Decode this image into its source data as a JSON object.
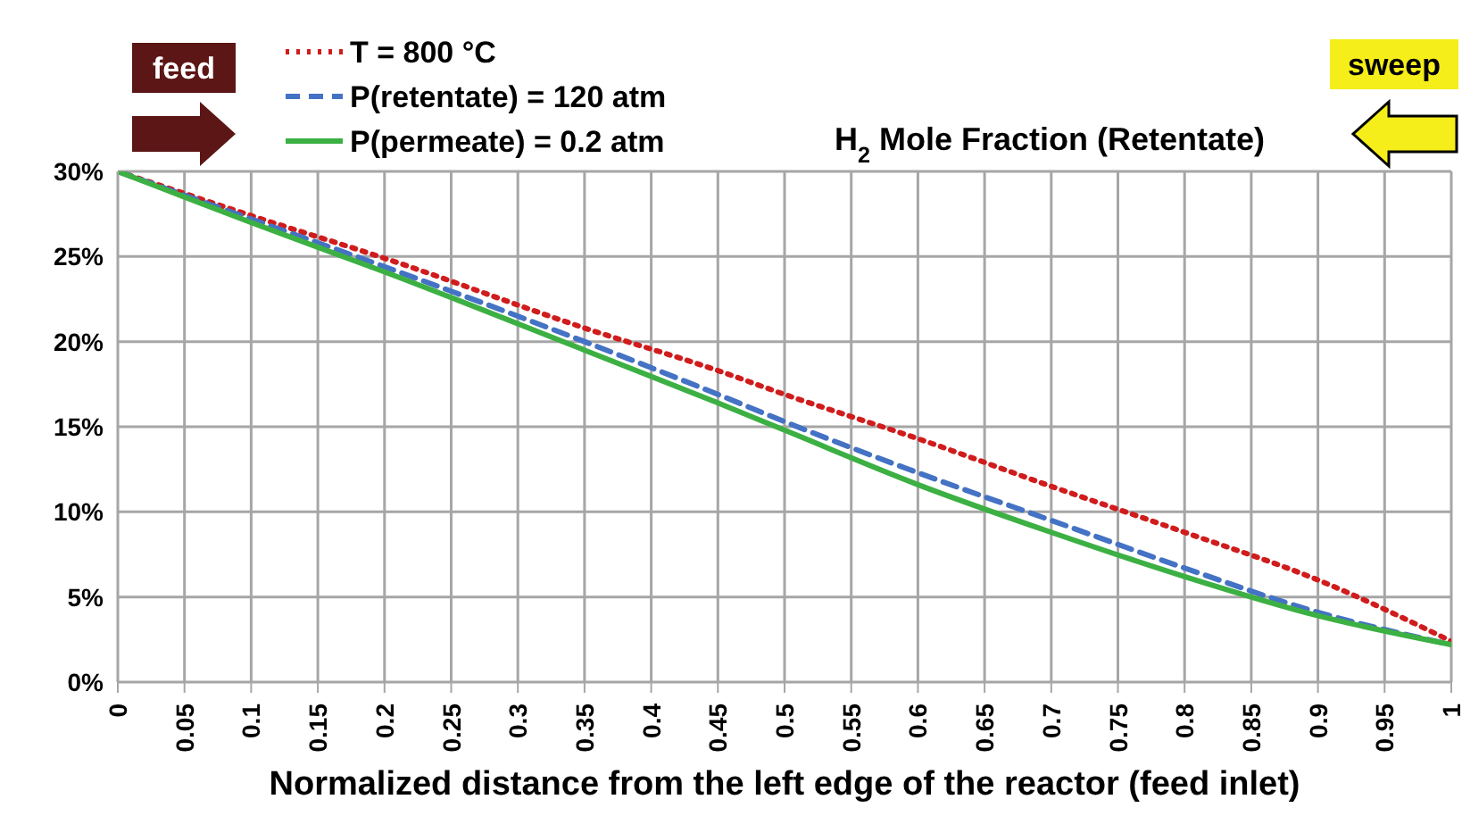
{
  "chart_data": {
    "type": "line",
    "title": "H$_{2}$ Mole Fraction (Retentate)",
    "xlabel": "Normalized distance from the left edge of the reactor (feed inlet)",
    "annotations": [
      "feed",
      "sweep"
    ],
    "x": [
      0,
      0.05,
      0.1,
      0.2,
      0.35,
      0.45,
      0.5,
      0.6,
      0.7,
      0.8,
      0.9,
      1
    ],
    "series": [
      {
        "name": "T = 800 °C",
        "color": "#d01c1c",
        "line_style": "dotted",
        "values": [
          30,
          28.7,
          27.4,
          24.9,
          20.8,
          18.3,
          16.9,
          14.3,
          11.5,
          8.8,
          6.0,
          2.4
        ]
      },
      {
        "name": "P(retentate) = 120 atm",
        "color": "#4472c4",
        "line_style": "dashed",
        "values": [
          30,
          28.6,
          27.2,
          24.4,
          20.0,
          16.9,
          15.3,
          12.3,
          9.5,
          6.7,
          4.1,
          2.2
        ]
      },
      {
        "name": "P(permeate) = 0.2 atm",
        "color": "#3cb043",
        "line_style": "solid",
        "values": [
          30,
          28.5,
          27.0,
          24.1,
          19.5,
          16.4,
          14.8,
          11.6,
          8.8,
          6.2,
          3.9,
          2.2
        ]
      }
    ],
    "xlim": [
      0,
      1
    ],
    "xticks": [
      0,
      0.05,
      0.1,
      0.15,
      0.2,
      0.25,
      0.3,
      0.35,
      0.4,
      0.45,
      0.5,
      0.55,
      0.6,
      0.65,
      0.7,
      0.75,
      0.8,
      0.85,
      0.9,
      0.95,
      1
    ],
    "ylim": [
      0,
      30
    ],
    "yticks": [
      {
        "value": 0,
        "label": "0%"
      },
      {
        "value": 5,
        "label": "5%"
      },
      {
        "value": 10,
        "label": "10%"
      },
      {
        "value": 15,
        "label": "15%"
      },
      {
        "value": 20,
        "label": "20%"
      },
      {
        "value": 25,
        "label": "25%"
      },
      {
        "value": 30,
        "label": "30%"
      }
    ],
    "grid": true,
    "legend": "top left",
    "marker": "none"
  }
}
